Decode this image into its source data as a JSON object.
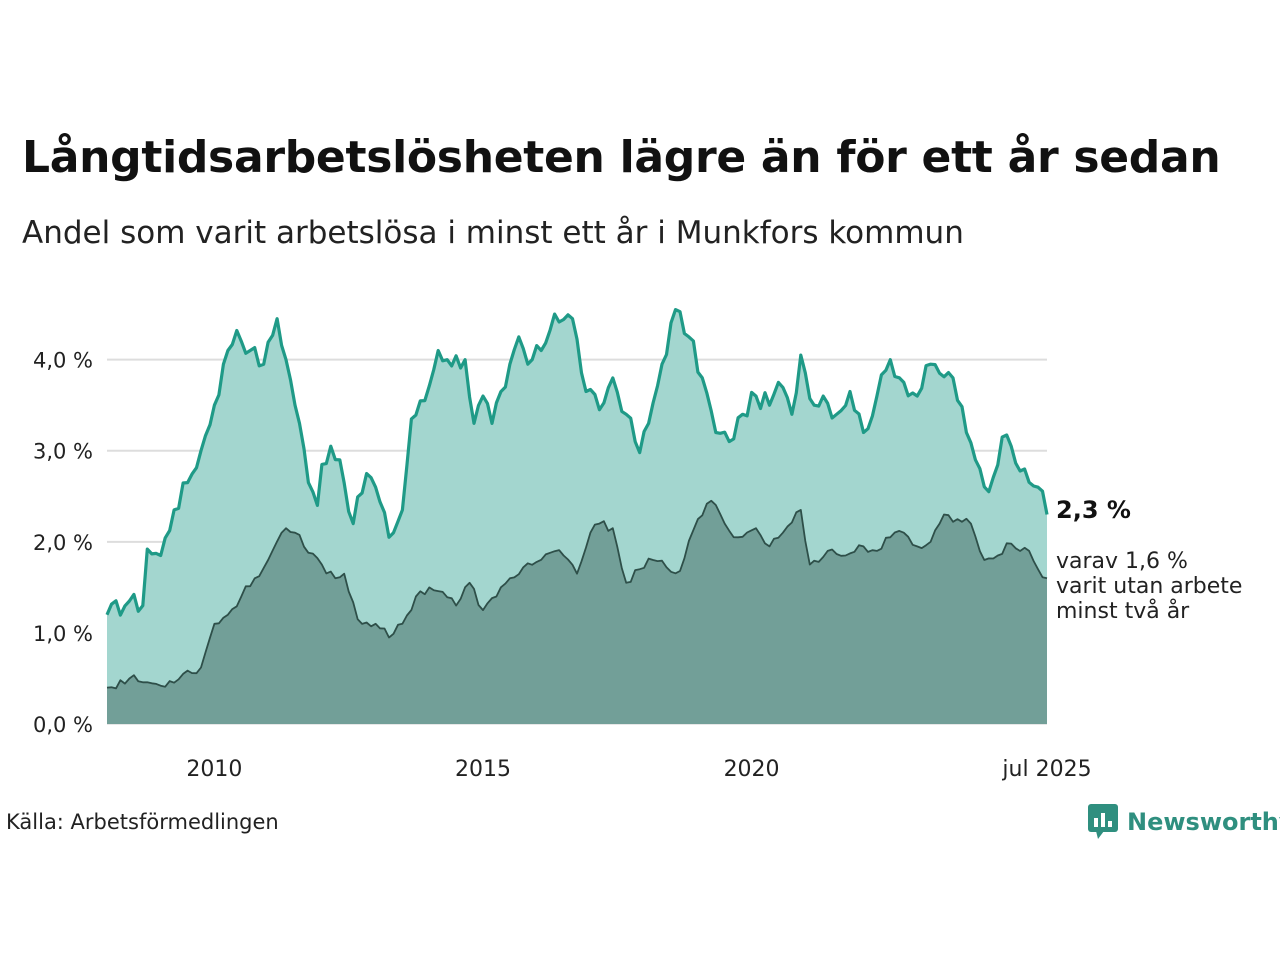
{
  "header": {
    "title": "Långtidsarbetslösheten lägre än för ett år sedan",
    "subtitle": "Andel som varit arbetslösa i minst ett år i Munkfors kommun"
  },
  "footer": {
    "source": "Källa: Arbetsförmedlingen",
    "logo_text": "Newsworthy",
    "logo_icon": "newsworthy-bar-chart-icon"
  },
  "colors": {
    "series_main_line": "#1f9a87",
    "series_main_fill": "#a3d6cf",
    "series_sub_line": "#2e4f49",
    "series_sub_fill": "#729f98",
    "grid": "#dddddd",
    "brand": "#2f8f7f"
  },
  "chart_data": {
    "type": "area",
    "x_unit": "month",
    "x_start": "2008-01",
    "x_end": "2025-07",
    "ylim": [
      0,
      4.6
    ],
    "y_ticks": [
      0,
      1,
      2,
      3,
      4
    ],
    "y_tick_labels": [
      "0,0 %",
      "1,0 %",
      "2,0 %",
      "3,0 %",
      "4,0 %"
    ],
    "x_tick_labels": [
      {
        "date": "2010-01",
        "label": "2010"
      },
      {
        "date": "2015-01",
        "label": "2015"
      },
      {
        "date": "2020-01",
        "label": "2020"
      },
      {
        "date": "2025-07",
        "label": "jul 2025"
      }
    ],
    "grid": true,
    "series": [
      {
        "key": "minst_ett_ar",
        "keyframes": [
          [
            "2008-01",
            1.2
          ],
          [
            "2008-06",
            1.35
          ],
          [
            "2008-09",
            1.3
          ],
          [
            "2008-10",
            1.92
          ],
          [
            "2009-01",
            1.85
          ],
          [
            "2009-04",
            2.35
          ],
          [
            "2009-07",
            2.65
          ],
          [
            "2009-10",
            3.0
          ],
          [
            "2010-01",
            3.5
          ],
          [
            "2010-04",
            4.1
          ],
          [
            "2010-06",
            4.32
          ],
          [
            "2010-09",
            4.1
          ],
          [
            "2010-12",
            3.95
          ],
          [
            "2011-03",
            4.45
          ],
          [
            "2011-05",
            4.0
          ],
          [
            "2011-08",
            3.3
          ],
          [
            "2011-10",
            2.65
          ],
          [
            "2011-12",
            2.4
          ],
          [
            "2012-01",
            2.85
          ],
          [
            "2012-03",
            3.05
          ],
          [
            "2012-05",
            2.9
          ],
          [
            "2012-08",
            2.2
          ],
          [
            "2012-11",
            2.75
          ],
          [
            "2013-01",
            2.6
          ],
          [
            "2013-04",
            2.05
          ],
          [
            "2013-07",
            2.35
          ],
          [
            "2013-09",
            3.35
          ],
          [
            "2013-12",
            3.55
          ],
          [
            "2014-03",
            4.1
          ],
          [
            "2014-05",
            4.0
          ],
          [
            "2014-09",
            4.0
          ],
          [
            "2014-11",
            3.3
          ],
          [
            "2015-01",
            3.6
          ],
          [
            "2015-03",
            3.3
          ],
          [
            "2015-06",
            3.7
          ],
          [
            "2015-09",
            4.25
          ],
          [
            "2015-11",
            3.95
          ],
          [
            "2016-02",
            4.1
          ],
          [
            "2016-05",
            4.5
          ],
          [
            "2016-09",
            4.45
          ],
          [
            "2016-12",
            3.65
          ],
          [
            "2017-03",
            3.45
          ],
          [
            "2017-06",
            3.8
          ],
          [
            "2017-09",
            3.4
          ],
          [
            "2017-12",
            2.98
          ],
          [
            "2018-02",
            3.3
          ],
          [
            "2018-05",
            3.95
          ],
          [
            "2018-08",
            4.55
          ],
          [
            "2018-11",
            4.25
          ],
          [
            "2019-02",
            3.8
          ],
          [
            "2019-05",
            3.2
          ],
          [
            "2019-08",
            3.1
          ],
          [
            "2019-11",
            3.4
          ],
          [
            "2020-02",
            3.6
          ],
          [
            "2020-05",
            3.5
          ],
          [
            "2020-07",
            3.75
          ],
          [
            "2020-10",
            3.4
          ],
          [
            "2020-12",
            4.05
          ],
          [
            "2021-03",
            3.5
          ],
          [
            "2021-05",
            3.6
          ],
          [
            "2021-08",
            3.4
          ],
          [
            "2021-11",
            3.65
          ],
          [
            "2022-02",
            3.2
          ],
          [
            "2022-05",
            3.6
          ],
          [
            "2022-08",
            4.0
          ],
          [
            "2022-11",
            3.75
          ],
          [
            "2023-02",
            3.6
          ],
          [
            "2023-05",
            3.95
          ],
          [
            "2023-07",
            3.85
          ],
          [
            "2023-10",
            3.8
          ],
          [
            "2024-01",
            3.2
          ],
          [
            "2024-03",
            2.9
          ],
          [
            "2024-06",
            2.55
          ],
          [
            "2024-09",
            3.15
          ],
          [
            "2024-11",
            3.05
          ],
          [
            "2025-02",
            2.8
          ],
          [
            "2025-05",
            2.6
          ],
          [
            "2025-07",
            2.3
          ]
        ]
      },
      {
        "key": "minst_tva_ar",
        "keyframes": [
          [
            "2008-01",
            0.4
          ],
          [
            "2008-06",
            0.5
          ],
          [
            "2009-01",
            0.42
          ],
          [
            "2009-06",
            0.55
          ],
          [
            "2009-10",
            0.62
          ],
          [
            "2010-01",
            1.1
          ],
          [
            "2010-04",
            1.2
          ],
          [
            "2010-07",
            1.4
          ],
          [
            "2010-10",
            1.6
          ],
          [
            "2011-01",
            1.8
          ],
          [
            "2011-04",
            2.1
          ],
          [
            "2011-07",
            2.1
          ],
          [
            "2011-10",
            1.88
          ],
          [
            "2012-01",
            1.75
          ],
          [
            "2012-04",
            1.6
          ],
          [
            "2012-06",
            1.65
          ],
          [
            "2012-09",
            1.15
          ],
          [
            "2013-01",
            1.1
          ],
          [
            "2013-04",
            0.95
          ],
          [
            "2013-07",
            1.1
          ],
          [
            "2013-10",
            1.4
          ],
          [
            "2014-01",
            1.5
          ],
          [
            "2014-04",
            1.45
          ],
          [
            "2014-07",
            1.3
          ],
          [
            "2014-10",
            1.55
          ],
          [
            "2015-01",
            1.25
          ],
          [
            "2015-04",
            1.4
          ],
          [
            "2015-07",
            1.6
          ],
          [
            "2015-10",
            1.72
          ],
          [
            "2016-01",
            1.78
          ],
          [
            "2016-04",
            1.88
          ],
          [
            "2016-07",
            1.85
          ],
          [
            "2016-10",
            1.65
          ],
          [
            "2017-01",
            2.1
          ],
          [
            "2017-03",
            2.2
          ],
          [
            "2017-06",
            2.15
          ],
          [
            "2017-09",
            1.55
          ],
          [
            "2017-12",
            1.7
          ],
          [
            "2018-03",
            1.8
          ],
          [
            "2018-06",
            1.72
          ],
          [
            "2018-09",
            1.68
          ],
          [
            "2019-01",
            2.25
          ],
          [
            "2019-04",
            2.45
          ],
          [
            "2019-07",
            2.2
          ],
          [
            "2019-10",
            2.05
          ],
          [
            "2020-02",
            2.15
          ],
          [
            "2020-05",
            1.95
          ],
          [
            "2020-08",
            2.1
          ],
          [
            "2020-12",
            2.35
          ],
          [
            "2021-02",
            1.75
          ],
          [
            "2021-06",
            1.9
          ],
          [
            "2021-10",
            1.85
          ],
          [
            "2022-02",
            1.95
          ],
          [
            "2022-05",
            1.9
          ],
          [
            "2022-08",
            2.05
          ],
          [
            "2022-11",
            2.1
          ],
          [
            "2023-02",
            1.95
          ],
          [
            "2023-05",
            2.0
          ],
          [
            "2023-08",
            2.3
          ],
          [
            "2023-11",
            2.25
          ],
          [
            "2024-02",
            2.2
          ],
          [
            "2024-05",
            1.8
          ],
          [
            "2024-08",
            1.85
          ],
          [
            "2024-11",
            1.98
          ],
          [
            "2025-03",
            1.9
          ],
          [
            "2025-05",
            1.7
          ],
          [
            "2025-07",
            1.6
          ]
        ]
      }
    ],
    "end_labels": {
      "main_value": "2,3 %",
      "sub_lines": [
        "varav 1,6 %",
        "varit utan arbete",
        "minst två år"
      ]
    }
  }
}
